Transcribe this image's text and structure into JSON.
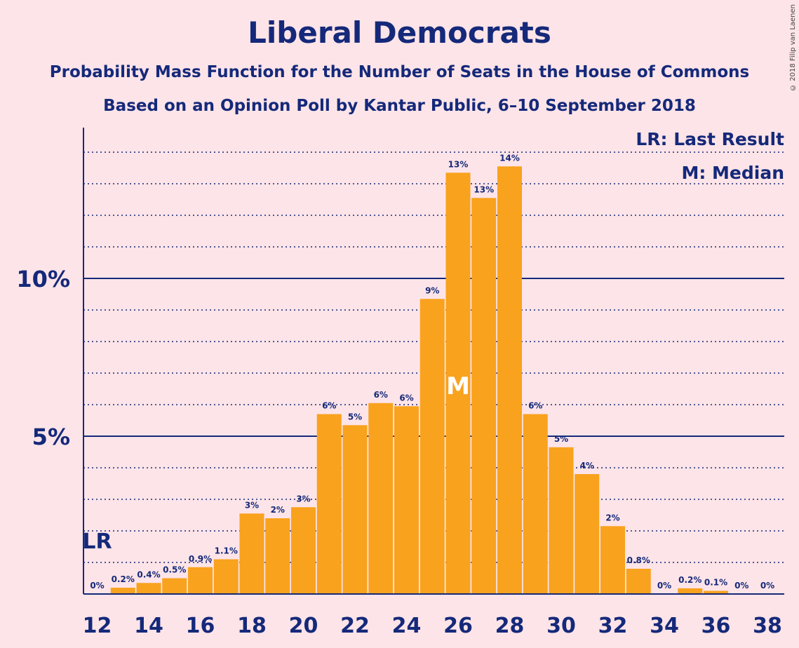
{
  "header": {
    "title": "Liberal Democrats",
    "subtitle": "Probability Mass Function for the Number of Seats in the House of Commons",
    "subtitle2": "Based on an Opinion Poll by Kantar Public, 6–10 September 2018",
    "copyright": "© 2018 Filip van Laenen"
  },
  "legend": {
    "last_result": "LR: Last Result",
    "median": "M: Median"
  },
  "colors": {
    "background": "#fde4e8",
    "bar": "#f9a21e",
    "text": "#15297a"
  },
  "chart_data": {
    "type": "bar",
    "x": [
      12,
      13,
      14,
      15,
      16,
      17,
      18,
      19,
      20,
      21,
      22,
      23,
      24,
      25,
      26,
      27,
      28,
      29,
      30,
      31,
      32,
      33,
      34,
      35,
      36,
      37,
      38
    ],
    "values": [
      0,
      0.2,
      0.35,
      0.5,
      0.85,
      1.1,
      2.55,
      2.4,
      2.75,
      5.7,
      5.35,
      6.05,
      5.95,
      9.35,
      13.35,
      12.55,
      13.55,
      5.7,
      4.65,
      3.8,
      2.15,
      0.8,
      0,
      0.18,
      0.1,
      0,
      0
    ],
    "labels": [
      "0%",
      "0.2%",
      "0.4%",
      "0.5%",
      "0.9%",
      "1.1%",
      "3%",
      "2%",
      "3%",
      "6%",
      "5%",
      "6%",
      "6%",
      "9%",
      "13%",
      "13%",
      "14%",
      "6%",
      "5%",
      "4%",
      "2%",
      "0.8%",
      "0%",
      "0.2%",
      "0.1%",
      "0%",
      "0%"
    ],
    "x_tick_labels": [
      "12",
      "14",
      "16",
      "18",
      "20",
      "22",
      "24",
      "26",
      "28",
      "30",
      "32",
      "34",
      "36",
      "38"
    ],
    "y_tick_labels": [
      "5%",
      "10%"
    ],
    "y_ticks": [
      5,
      10
    ],
    "ylim": [
      0,
      14.7
    ],
    "grid_minor_step": 1,
    "last_result": {
      "x": 12,
      "label": "LR"
    },
    "median": {
      "x": 26,
      "label": "M"
    }
  }
}
